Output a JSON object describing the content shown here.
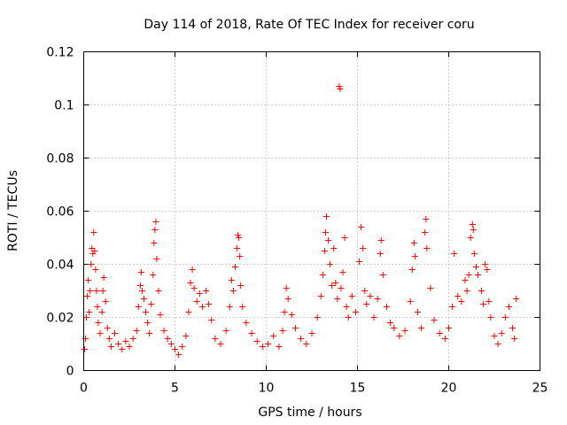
{
  "chart_data": {
    "type": "scatter",
    "title": "Day 114 of 2018, Rate Of TEC Index for receiver coru",
    "xlabel": "GPS time / hours",
    "ylabel": "ROTI / TECUs",
    "xlim": [
      0,
      25
    ],
    "ylim": [
      0,
      0.12
    ],
    "xticks": [
      0,
      5,
      10,
      15,
      20,
      25
    ],
    "yticks": [
      0,
      0.02,
      0.04,
      0.06,
      0.08,
      0.1,
      0.12
    ],
    "xtick_labels": [
      "0",
      "5",
      "10",
      "15",
      "20",
      "25"
    ],
    "ytick_labels": [
      "0",
      "0.02",
      "0.04",
      "0.06",
      "0.08",
      "0.1",
      "0.12"
    ],
    "grid": true,
    "marker": "+",
    "color": "#ff0000",
    "series": [
      {
        "name": "ROTI",
        "points": [
          [
            0.05,
            0.008
          ],
          [
            0.1,
            0.012
          ],
          [
            0.15,
            0.02
          ],
          [
            0.2,
            0.028
          ],
          [
            0.25,
            0.034
          ],
          [
            0.3,
            0.022
          ],
          [
            0.35,
            0.03
          ],
          [
            0.4,
            0.04
          ],
          [
            0.45,
            0.046
          ],
          [
            0.5,
            0.044
          ],
          [
            0.55,
            0.052
          ],
          [
            0.6,
            0.045
          ],
          [
            0.65,
            0.038
          ],
          [
            0.7,
            0.03
          ],
          [
            0.75,
            0.024
          ],
          [
            0.8,
            0.018
          ],
          [
            0.9,
            0.014
          ],
          [
            1.0,
            0.022
          ],
          [
            1.05,
            0.03
          ],
          [
            1.1,
            0.035
          ],
          [
            1.2,
            0.026
          ],
          [
            1.3,
            0.016
          ],
          [
            1.4,
            0.012
          ],
          [
            1.5,
            0.009
          ],
          [
            1.7,
            0.014
          ],
          [
            1.9,
            0.01
          ],
          [
            2.1,
            0.008
          ],
          [
            2.3,
            0.011
          ],
          [
            2.5,
            0.009
          ],
          [
            2.7,
            0.012
          ],
          [
            2.9,
            0.015
          ],
          [
            3.0,
            0.024
          ],
          [
            3.1,
            0.032
          ],
          [
            3.15,
            0.037
          ],
          [
            3.2,
            0.03
          ],
          [
            3.3,
            0.027
          ],
          [
            3.4,
            0.022
          ],
          [
            3.5,
            0.018
          ],
          [
            3.6,
            0.014
          ],
          [
            3.7,
            0.025
          ],
          [
            3.8,
            0.036
          ],
          [
            3.85,
            0.048
          ],
          [
            3.9,
            0.053
          ],
          [
            3.95,
            0.056
          ],
          [
            4.0,
            0.042
          ],
          [
            4.1,
            0.03
          ],
          [
            4.2,
            0.021
          ],
          [
            4.4,
            0.015
          ],
          [
            4.6,
            0.012
          ],
          [
            4.8,
            0.01
          ],
          [
            5.0,
            0.008
          ],
          [
            5.2,
            0.006
          ],
          [
            5.4,
            0.009
          ],
          [
            5.6,
            0.013
          ],
          [
            5.75,
            0.022
          ],
          [
            5.85,
            0.033
          ],
          [
            5.95,
            0.038
          ],
          [
            6.05,
            0.031
          ],
          [
            6.2,
            0.026
          ],
          [
            6.35,
            0.029
          ],
          [
            6.5,
            0.024
          ],
          [
            6.7,
            0.03
          ],
          [
            6.85,
            0.025
          ],
          [
            7.0,
            0.019
          ],
          [
            7.2,
            0.012
          ],
          [
            7.5,
            0.01
          ],
          [
            7.8,
            0.015
          ],
          [
            8.0,
            0.024
          ],
          [
            8.1,
            0.034
          ],
          [
            8.2,
            0.03
          ],
          [
            8.3,
            0.039
          ],
          [
            8.4,
            0.046
          ],
          [
            8.45,
            0.051
          ],
          [
            8.5,
            0.05
          ],
          [
            8.55,
            0.043
          ],
          [
            8.6,
            0.032
          ],
          [
            8.7,
            0.024
          ],
          [
            8.9,
            0.018
          ],
          [
            9.2,
            0.014
          ],
          [
            9.5,
            0.011
          ],
          [
            9.8,
            0.009
          ],
          [
            10.1,
            0.01
          ],
          [
            10.4,
            0.013
          ],
          [
            10.7,
            0.009
          ],
          [
            10.9,
            0.015
          ],
          [
            11.0,
            0.022
          ],
          [
            11.1,
            0.031
          ],
          [
            11.2,
            0.027
          ],
          [
            11.4,
            0.021
          ],
          [
            11.6,
            0.016
          ],
          [
            11.9,
            0.012
          ],
          [
            12.2,
            0.01
          ],
          [
            12.5,
            0.014
          ],
          [
            12.8,
            0.02
          ],
          [
            13.0,
            0.028
          ],
          [
            13.1,
            0.036
          ],
          [
            13.2,
            0.045
          ],
          [
            13.25,
            0.052
          ],
          [
            13.3,
            0.058
          ],
          [
            13.4,
            0.049
          ],
          [
            13.5,
            0.04
          ],
          [
            13.6,
            0.032
          ],
          [
            13.7,
            0.046
          ],
          [
            13.8,
            0.033
          ],
          [
            13.9,
            0.027
          ],
          [
            14.0,
            0.107
          ],
          [
            14.05,
            0.106
          ],
          [
            14.1,
            0.031
          ],
          [
            14.2,
            0.037
          ],
          [
            14.3,
            0.05
          ],
          [
            14.4,
            0.024
          ],
          [
            14.5,
            0.02
          ],
          [
            14.7,
            0.028
          ],
          [
            14.9,
            0.022
          ],
          [
            15.1,
            0.041
          ],
          [
            15.2,
            0.054
          ],
          [
            15.3,
            0.046
          ],
          [
            15.4,
            0.03
          ],
          [
            15.5,
            0.025
          ],
          [
            15.7,
            0.028
          ],
          [
            15.9,
            0.02
          ],
          [
            16.1,
            0.027
          ],
          [
            16.25,
            0.044
          ],
          [
            16.3,
            0.049
          ],
          [
            16.4,
            0.036
          ],
          [
            16.6,
            0.024
          ],
          [
            16.8,
            0.018
          ],
          [
            17.0,
            0.016
          ],
          [
            17.3,
            0.013
          ],
          [
            17.6,
            0.015
          ],
          [
            17.9,
            0.026
          ],
          [
            18.0,
            0.038
          ],
          [
            18.1,
            0.048
          ],
          [
            18.15,
            0.043
          ],
          [
            18.3,
            0.022
          ],
          [
            18.5,
            0.016
          ],
          [
            18.7,
            0.052
          ],
          [
            18.75,
            0.057
          ],
          [
            18.8,
            0.046
          ],
          [
            19.0,
            0.031
          ],
          [
            19.2,
            0.019
          ],
          [
            19.5,
            0.014
          ],
          [
            19.8,
            0.012
          ],
          [
            20.0,
            0.016
          ],
          [
            20.2,
            0.024
          ],
          [
            20.3,
            0.044
          ],
          [
            20.5,
            0.028
          ],
          [
            20.7,
            0.026
          ],
          [
            20.9,
            0.034
          ],
          [
            21.0,
            0.03
          ],
          [
            21.1,
            0.036
          ],
          [
            21.2,
            0.05
          ],
          [
            21.3,
            0.055
          ],
          [
            21.35,
            0.053
          ],
          [
            21.4,
            0.044
          ],
          [
            21.5,
            0.039
          ],
          [
            21.6,
            0.036
          ],
          [
            21.8,
            0.03
          ],
          [
            21.9,
            0.025
          ],
          [
            22.0,
            0.04
          ],
          [
            22.1,
            0.038
          ],
          [
            22.2,
            0.026
          ],
          [
            22.3,
            0.02
          ],
          [
            22.5,
            0.013
          ],
          [
            22.7,
            0.01
          ],
          [
            22.9,
            0.014
          ],
          [
            23.1,
            0.02
          ],
          [
            23.3,
            0.024
          ],
          [
            23.5,
            0.016
          ],
          [
            23.6,
            0.012
          ],
          [
            23.7,
            0.027
          ]
        ]
      }
    ]
  }
}
